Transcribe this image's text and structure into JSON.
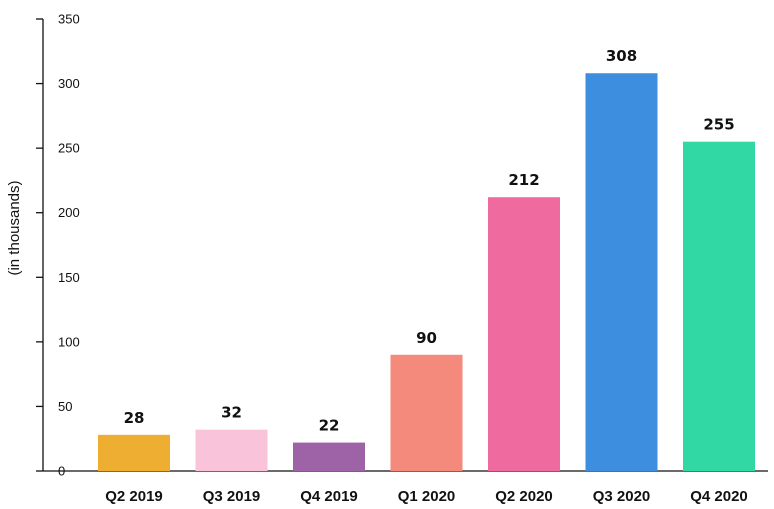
{
  "chart_data": {
    "type": "bar",
    "title": "",
    "xlabel": "",
    "ylabel": "(in thousands)",
    "ylim": [
      0,
      350
    ],
    "yticks": [
      0,
      50,
      100,
      150,
      200,
      250,
      300,
      350
    ],
    "grid": false,
    "categories": [
      "Q2 2019",
      "Q3 2019",
      "Q4 2019",
      "Q1 2020",
      "Q2 2020",
      "Q3 2020",
      "Q4 2020"
    ],
    "values": [
      28,
      32,
      22,
      90,
      212,
      308,
      255
    ],
    "colors": [
      "#EEAE32",
      "#F9C3DA",
      "#9E62A6",
      "#F48A7C",
      "#EF6A9F",
      "#3D8EDF",
      "#32D8A4"
    ]
  }
}
